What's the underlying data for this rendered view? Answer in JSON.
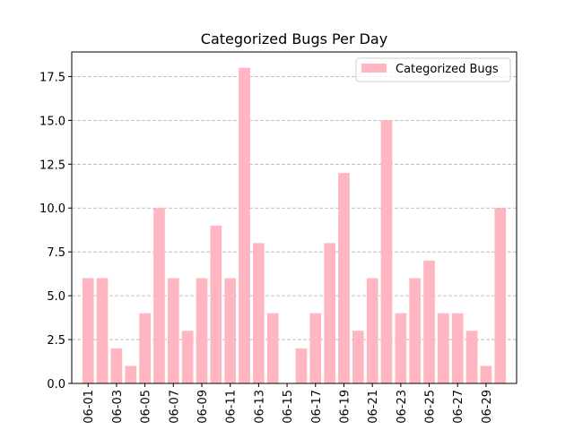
{
  "chart_data": {
    "type": "bar",
    "title": "Categorized Bugs Per Day",
    "xlabel": "",
    "ylabel": "",
    "categories": [
      "06-01",
      "06-02",
      "06-03",
      "06-04",
      "06-05",
      "06-06",
      "06-07",
      "06-08",
      "06-09",
      "06-10",
      "06-11",
      "06-12",
      "06-13",
      "06-14",
      "06-15",
      "06-16",
      "06-17",
      "06-18",
      "06-19",
      "06-20",
      "06-21",
      "06-22",
      "06-23",
      "06-24",
      "06-25",
      "06-26",
      "06-27",
      "06-28",
      "06-29",
      "06-30"
    ],
    "x_tick_labels": [
      "06-01",
      "06-03",
      "06-05",
      "06-07",
      "06-09",
      "06-11",
      "06-13",
      "06-15",
      "06-17",
      "06-19",
      "06-21",
      "06-23",
      "06-25",
      "06-27",
      "06-29"
    ],
    "series": [
      {
        "name": "Categorized Bugs",
        "color": "#ffb6c1",
        "values": [
          6,
          6,
          2,
          1,
          4,
          10,
          6,
          3,
          6,
          9,
          6,
          18,
          8,
          4,
          0,
          2,
          4,
          8,
          12,
          3,
          6,
          15,
          4,
          6,
          7,
          4,
          4,
          3,
          1,
          10
        ]
      }
    ],
    "ylim": [
      0,
      18.9
    ],
    "y_ticks": [
      0.0,
      2.5,
      5.0,
      7.5,
      10.0,
      12.5,
      15.0,
      17.5
    ],
    "y_tick_labels": [
      "0.0",
      "2.5",
      "5.0",
      "7.5",
      "10.0",
      "12.5",
      "15.0",
      "17.5"
    ],
    "grid": "y-dashed",
    "legend_position": "top-right"
  }
}
